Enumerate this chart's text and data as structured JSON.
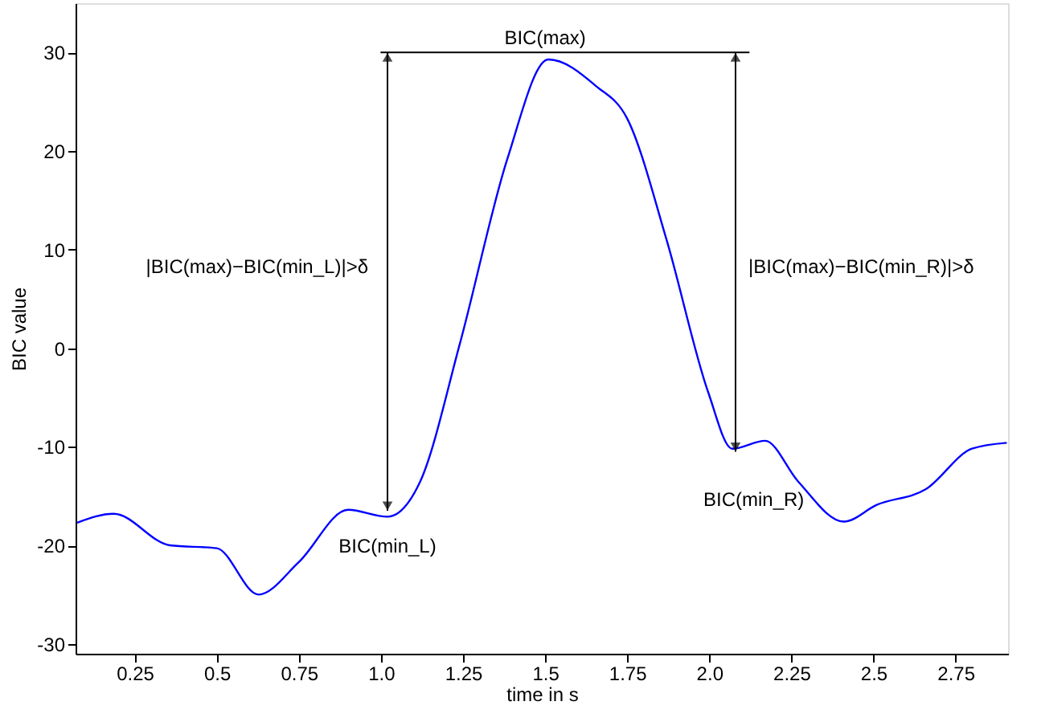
{
  "chart_data": {
    "type": "line",
    "xlabel": "time in s",
    "ylabel": "BIC value",
    "x": [
      0.075,
      0.186,
      0.357,
      0.5,
      0.627,
      0.75,
      0.9,
      1.02,
      1.12,
      1.24,
      1.385,
      1.51,
      1.655,
      1.75,
      1.87,
      1.997,
      2.07,
      2.17,
      2.27,
      2.41,
      2.51,
      2.66,
      2.8,
      2.906
    ],
    "series": [
      {
        "color": "#0000ff",
        "values": [
          -17.7,
          -16.8,
          -20,
          -20.3,
          -25,
          -21.7,
          -16.4,
          -17.1,
          -13.5,
          0.4,
          19.2,
          29.3,
          26.6,
          23.3,
          11,
          -4.5,
          -10.2,
          -9.4,
          -13.5,
          -17.6,
          -15.9,
          -14.3,
          -10.2,
          -9.6
        ]
      }
    ],
    "xlim": [
      0.07,
      2.91
    ],
    "ylim": [
      -31,
      35
    ],
    "xticks": [
      0.25,
      0.5,
      0.75,
      {
        "value": 1,
        "label": "1.0"
      },
      1.25,
      1.5,
      1.75,
      {
        "value": 2,
        "label": "2.0"
      },
      2.25,
      2.5,
      2.75
    ],
    "yticks": [
      -30,
      -20,
      -10,
      0,
      10,
      20,
      30
    ],
    "grid": false,
    "legend": false,
    "marker": "none",
    "line_style": "solid",
    "annotations": [
      {
        "text": "BIC(max)",
        "x": 1.5,
        "y": 30
      },
      {
        "text": "BIC(min_L)",
        "x": 1.02,
        "y": -16.5
      },
      {
        "text": "BIC(min_R)",
        "x": 2.08,
        "y": -10.5
      },
      "|BIC(max)−BIC(min_L)|>δ",
      "|BIC(max)−BIC(min_R)|>δ"
    ]
  }
}
